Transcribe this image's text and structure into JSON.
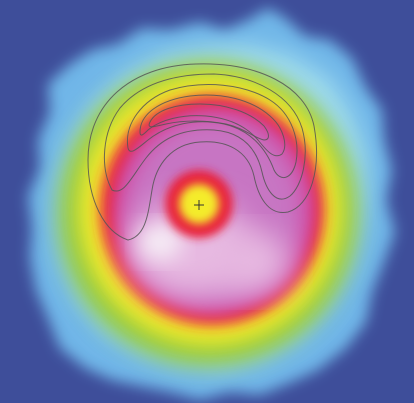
{
  "colors": {
    "background": "#3e4e9a",
    "halo_outer": "#6fb6e8",
    "halo_inner": "#9fdbee",
    "green": "#8bc63f",
    "yellow": "#f4ec2a",
    "red": "#e8223c",
    "magenta": "#d33f9a",
    "purple": "#c775c3",
    "pink_light": "#e7b9e1",
    "white_glow": "#f6eef6",
    "contour": "#555555",
    "marker": "#333333"
  },
  "center_marker": {
    "symbol": "plus-marker"
  },
  "contours": {
    "count": 5
  }
}
